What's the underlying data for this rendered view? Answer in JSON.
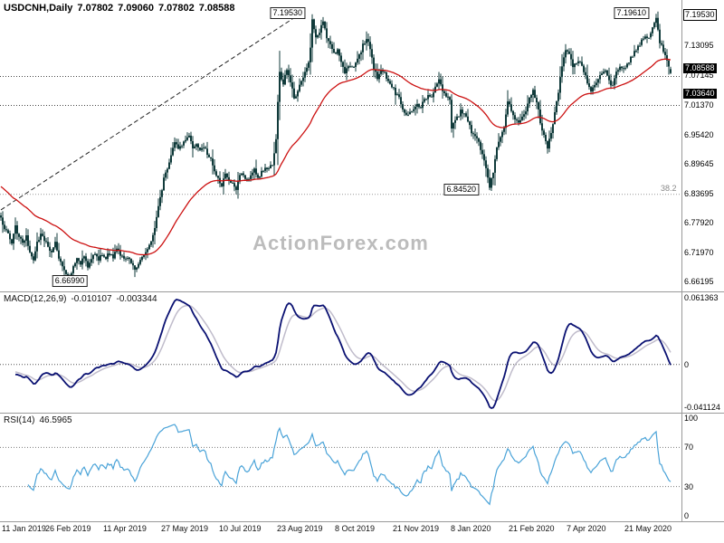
{
  "watermark": "ActionForex.com",
  "header": {
    "symbol_timeframe": "USDCNH,Daily",
    "open": "7.07802",
    "high": "7.09060",
    "low": "7.07802",
    "close": "7.08588"
  },
  "panels": {
    "price": {
      "axis_labels": [
        {
          "value": 7.1953,
          "label": "7.19530",
          "style": "outline"
        },
        {
          "value": 7.13095,
          "label": "7.13095",
          "style": "plain"
        },
        {
          "value": 7.08588,
          "label": "7.08588",
          "style": "solid"
        },
        {
          "value": 7.07145,
          "label": "7.07145",
          "style": "plain"
        },
        {
          "value": 7.0364,
          "label": "7.03640",
          "style": "solid"
        },
        {
          "value": 7.0137,
          "label": "7.01370",
          "style": "plain"
        },
        {
          "value": 6.9542,
          "label": "6.95420",
          "style": "plain"
        },
        {
          "value": 6.89645,
          "label": "6.89645",
          "style": "plain"
        },
        {
          "value": 6.83695,
          "label": "6.83695",
          "style": "plain"
        },
        {
          "value": 6.7792,
          "label": "6.77920",
          "style": "plain"
        },
        {
          "value": 6.7197,
          "label": "6.71970",
          "style": "plain"
        },
        {
          "value": 6.66195,
          "label": "6.66195",
          "style": "plain"
        }
      ],
      "annotations": [
        {
          "label": "7.19530",
          "day": 172,
          "price": 7.1953,
          "placement": "left-top"
        },
        {
          "label": "7.19610",
          "day": 362,
          "price": 7.1961,
          "placement": "left-top"
        },
        {
          "label": "6.84520",
          "day": 270,
          "price": 6.8452,
          "placement": "left"
        },
        {
          "label": "6.66990",
          "day": 38,
          "price": 6.6699,
          "placement": "below"
        }
      ],
      "dotted_levels": [
        7.07145,
        7.0137
      ],
      "fib": {
        "level": 6.83695,
        "label": "38.2"
      },
      "trendline": {
        "day1": 0,
        "price1": 6.806,
        "day2": 167,
        "price2": 7.2
      }
    },
    "macd": {
      "title": "MACD(12,26,9)",
      "value_main": "-0.010107",
      "value_signal": "-0.003344",
      "axis_max": "0.061363",
      "axis_zero": "0",
      "axis_min": "-0.041124"
    },
    "rsi": {
      "title": "RSI(14)",
      "value": "46.5965",
      "axis": [
        "100",
        "70",
        "30",
        "0"
      ],
      "levels": [
        70,
        30
      ]
    }
  },
  "x_axis": {
    "ticks": [
      {
        "label": "11 Jan 2019",
        "day": 6
      },
      {
        "label": "26 Feb 2019",
        "day": 38
      },
      {
        "label": "11 Apr 2019",
        "day": 70
      },
      {
        "label": "27 May 2019",
        "day": 102
      },
      {
        "label": "10 Jul 2019",
        "day": 134
      },
      {
        "label": "23 Aug 2019",
        "day": 166
      },
      {
        "label": "8 Oct 2019",
        "day": 198
      },
      {
        "label": "21 Nov 2019",
        "day": 230
      },
      {
        "label": "8 Jan 2020",
        "day": 262
      },
      {
        "label": "21 Feb 2020",
        "day": 294
      },
      {
        "label": "7 Apr 2020",
        "day": 326
      },
      {
        "label": "21 May 2020",
        "day": 358
      }
    ]
  },
  "colors": {
    "candle": "#113b3b",
    "ma": "#cc1111",
    "macd": "#0a1172",
    "signal": "#c0bccb",
    "rsi": "#4aa3d8",
    "watermark": "#bcbcbc",
    "separator": "#999999"
  },
  "chart_data": {
    "type": "candlestick",
    "symbol": "USDCNH",
    "timeframe": "Daily",
    "current_bar": {
      "open": 7.07802,
      "high": 7.0906,
      "low": 7.07802,
      "close": 7.08588
    },
    "indicators": {
      "ma_period": 50,
      "macd_params": [
        12,
        26,
        9
      ],
      "macd_current": [
        -0.010107,
        -0.003344
      ],
      "macd_axis_range": [
        -0.041124,
        0.061363
      ],
      "rsi_period": 14,
      "rsi_current": 46.5965,
      "rsi_axis_range": [
        0,
        100
      ]
    },
    "key_levels": {
      "high_sep_2019": 7.1953,
      "high_may_2020": 7.1961,
      "low_jan_2020": 6.8452,
      "low_feb_2019": 6.6699,
      "current_price": 7.08588,
      "support": 7.0364,
      "fib_38_2": 6.83695
    },
    "price_keypoints": [
      [
        0,
        6.788
      ],
      [
        2,
        6.77
      ],
      [
        4,
        6.758
      ],
      [
        6,
        6.742
      ],
      [
        8,
        6.772
      ],
      [
        10,
        6.752
      ],
      [
        12,
        6.738
      ],
      [
        14,
        6.752
      ],
      [
        16,
        6.718
      ],
      [
        18,
        6.705
      ],
      [
        20,
        6.742
      ],
      [
        22,
        6.756
      ],
      [
        24,
        6.748
      ],
      [
        26,
        6.73
      ],
      [
        28,
        6.722
      ],
      [
        30,
        6.742
      ],
      [
        32,
        6.712
      ],
      [
        34,
        6.695
      ],
      [
        36,
        6.678
      ],
      [
        38,
        6.672
      ],
      [
        40,
        6.692
      ],
      [
        42,
        6.71
      ],
      [
        44,
        6.7
      ],
      [
        46,
        6.712
      ],
      [
        48,
        6.69
      ],
      [
        50,
        6.71
      ],
      [
        52,
        6.722
      ],
      [
        54,
        6.708
      ],
      [
        56,
        6.718
      ],
      [
        58,
        6.712
      ],
      [
        60,
        6.72
      ],
      [
        62,
        6.712
      ],
      [
        64,
        6.728
      ],
      [
        66,
        6.718
      ],
      [
        68,
        6.706
      ],
      [
        70,
        6.712
      ],
      [
        72,
        6.698
      ],
      [
        74,
        6.686
      ],
      [
        76,
        6.7
      ],
      [
        78,
        6.712
      ],
      [
        80,
        6.722
      ],
      [
        82,
        6.735
      ],
      [
        84,
        6.752
      ],
      [
        86,
        6.792
      ],
      [
        88,
        6.828
      ],
      [
        90,
        6.868
      ],
      [
        92,
        6.888
      ],
      [
        94,
        6.912
      ],
      [
        96,
        6.942
      ],
      [
        98,
        6.93
      ],
      [
        100,
        6.938
      ],
      [
        102,
        6.948
      ],
      [
        104,
        6.955
      ],
      [
        106,
        6.928
      ],
      [
        108,
        6.938
      ],
      [
        110,
        6.925
      ],
      [
        112,
        6.93
      ],
      [
        114,
        6.918
      ],
      [
        116,
        6.905
      ],
      [
        118,
        6.882
      ],
      [
        120,
        6.868
      ],
      [
        122,
        6.852
      ],
      [
        124,
        6.878
      ],
      [
        126,
        6.866
      ],
      [
        128,
        6.856
      ],
      [
        130,
        6.842
      ],
      [
        132,
        6.878
      ],
      [
        134,
        6.872
      ],
      [
        136,
        6.862
      ],
      [
        138,
        6.878
      ],
      [
        140,
        6.885
      ],
      [
        142,
        6.872
      ],
      [
        144,
        6.88
      ],
      [
        146,
        6.888
      ],
      [
        148,
        6.885
      ],
      [
        150,
        6.898
      ],
      [
        151,
        6.92
      ],
      [
        152,
        6.945
      ],
      [
        153,
        7.02
      ],
      [
        154,
        7.08
      ],
      [
        156,
        7.058
      ],
      [
        158,
        7.088
      ],
      [
        160,
        7.062
      ],
      [
        162,
        7.028
      ],
      [
        164,
        7.042
      ],
      [
        166,
        7.062
      ],
      [
        168,
        7.078
      ],
      [
        170,
        7.098
      ],
      [
        171,
        7.132
      ],
      [
        172,
        7.185
      ],
      [
        174,
        7.148
      ],
      [
        176,
        7.162
      ],
      [
        178,
        7.178
      ],
      [
        179,
        7.168
      ],
      [
        180,
        7.15
      ],
      [
        182,
        7.132
      ],
      [
        184,
        7.118
      ],
      [
        186,
        7.122
      ],
      [
        188,
        7.098
      ],
      [
        190,
        7.078
      ],
      [
        192,
        7.092
      ],
      [
        194,
        7.088
      ],
      [
        196,
        7.098
      ],
      [
        198,
        7.112
      ],
      [
        200,
        7.135
      ],
      [
        202,
        7.148
      ],
      [
        204,
        7.128
      ],
      [
        206,
        7.088
      ],
      [
        208,
        7.068
      ],
      [
        210,
        7.082
      ],
      [
        212,
        7.078
      ],
      [
        214,
        7.062
      ],
      [
        216,
        7.052
      ],
      [
        218,
        7.038
      ],
      [
        220,
        7.028
      ],
      [
        222,
        7.002
      ],
      [
        224,
        6.992
      ],
      [
        226,
        7.002
      ],
      [
        228,
        7.008
      ],
      [
        230,
        7.018
      ],
      [
        232,
        7.008
      ],
      [
        234,
        7.028
      ],
      [
        236,
        7.032
      ],
      [
        238,
        7.028
      ],
      [
        240,
        7.048
      ],
      [
        242,
        7.065
      ],
      [
        244,
        7.042
      ],
      [
        246,
        7.035
      ],
      [
        248,
        7.028
      ],
      [
        249,
        6.968
      ],
      [
        250,
        6.982
      ],
      [
        252,
        6.988
      ],
      [
        254,
        7.002
      ],
      [
        256,
        6.995
      ],
      [
        258,
        6.982
      ],
      [
        260,
        6.962
      ],
      [
        262,
        6.952
      ],
      [
        264,
        6.938
      ],
      [
        266,
        6.918
      ],
      [
        268,
        6.892
      ],
      [
        270,
        6.85
      ],
      [
        272,
        6.882
      ],
      [
        274,
        6.932
      ],
      [
        276,
        6.952
      ],
      [
        278,
        6.968
      ],
      [
        280,
        7.022
      ],
      [
        282,
        7.002
      ],
      [
        284,
        6.985
      ],
      [
        286,
        6.978
      ],
      [
        288,
        6.992
      ],
      [
        290,
        7.002
      ],
      [
        292,
        7.028
      ],
      [
        294,
        7.042
      ],
      [
        296,
        7.022
      ],
      [
        298,
        6.982
      ],
      [
        300,
        6.952
      ],
      [
        302,
        6.932
      ],
      [
        304,
        6.958
      ],
      [
        306,
        7.002
      ],
      [
        308,
        7.042
      ],
      [
        310,
        7.092
      ],
      [
        312,
        7.122
      ],
      [
        314,
        7.118
      ],
      [
        316,
        7.088
      ],
      [
        318,
        7.098
      ],
      [
        320,
        7.102
      ],
      [
        322,
        7.082
      ],
      [
        324,
        7.058
      ],
      [
        326,
        7.042
      ],
      [
        328,
        7.052
      ],
      [
        330,
        7.068
      ],
      [
        332,
        7.078
      ],
      [
        334,
        7.082
      ],
      [
        336,
        7.062
      ],
      [
        338,
        7.052
      ],
      [
        340,
        7.078
      ],
      [
        342,
        7.092
      ],
      [
        344,
        7.088
      ],
      [
        346,
        7.098
      ],
      [
        348,
        7.108
      ],
      [
        350,
        7.122
      ],
      [
        352,
        7.132
      ],
      [
        354,
        7.142
      ],
      [
        356,
        7.152
      ],
      [
        358,
        7.148
      ],
      [
        360,
        7.168
      ],
      [
        362,
        7.188
      ],
      [
        363,
        7.162
      ],
      [
        364,
        7.14
      ],
      [
        366,
        7.122
      ],
      [
        368,
        7.102
      ],
      [
        370,
        7.086
      ]
    ]
  }
}
